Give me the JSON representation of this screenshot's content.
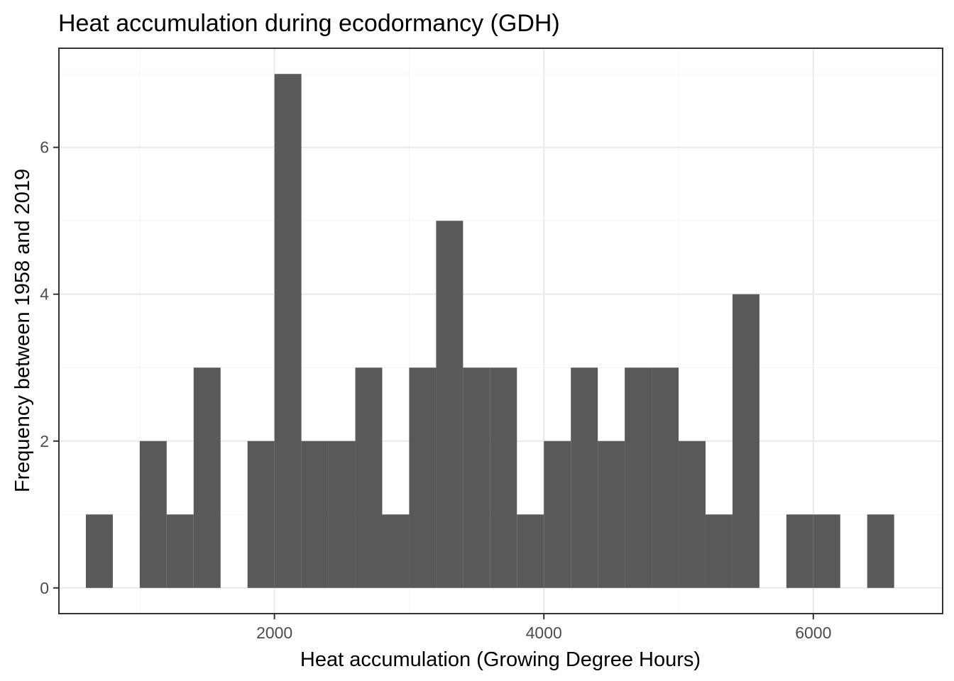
{
  "chart_data": {
    "type": "bar",
    "title": "Heat accumulation during ecodormancy (GDH)",
    "xlabel": "Heat accumulation (Growing Degree Hours)",
    "ylabel": "Frequency between 1958 and 2019",
    "xlim": [
      400,
      6960
    ],
    "ylim": [
      -0.35,
      7.35
    ],
    "x_ticks": [
      2000,
      4000,
      6000
    ],
    "y_ticks": [
      0,
      2,
      4,
      6
    ],
    "x_tick_labels": [
      "2000",
      "4000",
      "6000"
    ],
    "y_tick_labels": [
      "0",
      "2",
      "4",
      "6"
    ],
    "x_minor_ticks": [
      1000,
      3000,
      5000
    ],
    "y_minor_ticks": [
      1,
      3,
      5,
      7
    ],
    "grid": true,
    "bin_width": 200,
    "bins": [
      {
        "start": 600,
        "end": 800,
        "count": 1
      },
      {
        "start": 800,
        "end": 1000,
        "count": 0
      },
      {
        "start": 1000,
        "end": 1200,
        "count": 2
      },
      {
        "start": 1200,
        "end": 1400,
        "count": 1
      },
      {
        "start": 1400,
        "end": 1600,
        "count": 3
      },
      {
        "start": 1600,
        "end": 1800,
        "count": 0
      },
      {
        "start": 1800,
        "end": 2000,
        "count": 2
      },
      {
        "start": 2000,
        "end": 2200,
        "count": 7
      },
      {
        "start": 2200,
        "end": 2400,
        "count": 2
      },
      {
        "start": 2400,
        "end": 2600,
        "count": 2
      },
      {
        "start": 2600,
        "end": 2800,
        "count": 3
      },
      {
        "start": 2800,
        "end": 3000,
        "count": 1
      },
      {
        "start": 3000,
        "end": 3200,
        "count": 3
      },
      {
        "start": 3200,
        "end": 3400,
        "count": 5
      },
      {
        "start": 3400,
        "end": 3600,
        "count": 3
      },
      {
        "start": 3600,
        "end": 3800,
        "count": 3
      },
      {
        "start": 3800,
        "end": 4000,
        "count": 1
      },
      {
        "start": 4000,
        "end": 4200,
        "count": 2
      },
      {
        "start": 4200,
        "end": 4400,
        "count": 3
      },
      {
        "start": 4400,
        "end": 4600,
        "count": 2
      },
      {
        "start": 4600,
        "end": 4800,
        "count": 3
      },
      {
        "start": 4800,
        "end": 5000,
        "count": 3
      },
      {
        "start": 5000,
        "end": 5200,
        "count": 2
      },
      {
        "start": 5200,
        "end": 5400,
        "count": 1
      },
      {
        "start": 5400,
        "end": 5600,
        "count": 4
      },
      {
        "start": 5600,
        "end": 5800,
        "count": 0
      },
      {
        "start": 5800,
        "end": 6000,
        "count": 1
      },
      {
        "start": 6000,
        "end": 6200,
        "count": 1
      },
      {
        "start": 6200,
        "end": 6400,
        "count": 0
      },
      {
        "start": 6400,
        "end": 6600,
        "count": 1
      }
    ],
    "colors": {
      "bar": "#595959",
      "grid_major": "#ebebeb",
      "grid_minor": "#f5f5f5",
      "border": "#333333"
    }
  }
}
